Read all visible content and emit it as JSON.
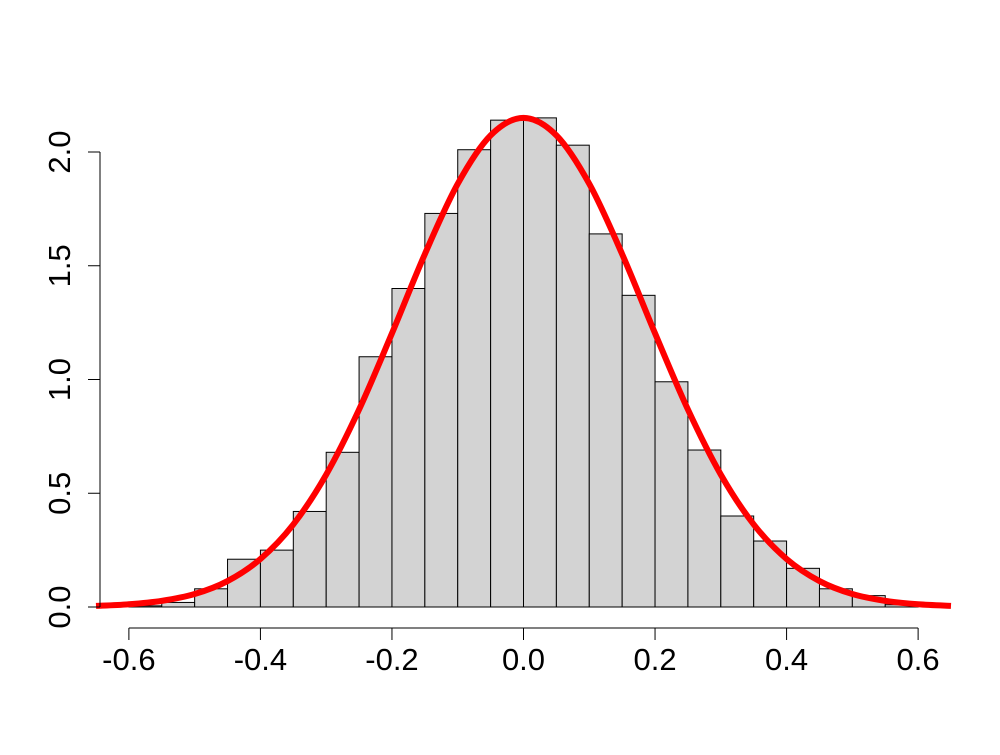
{
  "chart_data": {
    "type": "histogram",
    "bins": [
      -0.6,
      -0.55,
      -0.5,
      -0.45,
      -0.4,
      -0.35,
      -0.3,
      -0.25,
      -0.2,
      -0.15,
      -0.1,
      -0.05,
      0,
      0.05,
      0.1,
      0.15,
      0.2,
      0.25,
      0.3,
      0.35,
      0.4,
      0.45,
      0.5,
      0.55,
      0.6
    ],
    "values": [
      0.005,
      0.02,
      0.08,
      0.21,
      0.25,
      0.42,
      0.68,
      1.1,
      1.4,
      1.73,
      2.01,
      2.14,
      2.15,
      2.03,
      1.64,
      1.37,
      0.99,
      0.69,
      0.4,
      0.29,
      0.17,
      0.08,
      0.05,
      0.01
    ],
    "color": "#d3d3d3",
    "curve": {
      "color": "#ff0000",
      "x": [
        -0.65,
        -0.6,
        -0.55,
        -0.5,
        -0.45,
        -0.4,
        -0.35,
        -0.3,
        -0.25,
        -0.2,
        -0.15,
        -0.1,
        -0.05,
        0,
        0.05,
        0.1,
        0.15,
        0.2,
        0.25,
        0.3,
        0.35,
        0.4,
        0.45,
        0.5,
        0.55,
        0.6,
        0.65
      ],
      "y": [
        0.005,
        0.012,
        0.027,
        0.057,
        0.114,
        0.211,
        0.363,
        0.582,
        0.868,
        1.203,
        1.551,
        1.86,
        2.073,
        2.15,
        2.073,
        1.86,
        1.551,
        1.203,
        0.868,
        0.582,
        0.363,
        0.211,
        0.114,
        0.057,
        0.027,
        0.012,
        0.005
      ]
    },
    "xlim": [
      -0.65,
      0.65
    ],
    "ylim": [
      0,
      2.2
    ],
    "xticks": [
      -0.6,
      -0.4,
      -0.2,
      {
        "value": 0,
        "label": "0.0"
      },
      0.2,
      0.4,
      0.6
    ],
    "yticks": [
      {
        "value": 0,
        "label": "0.0"
      },
      0.5,
      {
        "value": 1,
        "label": "1.0"
      },
      1.5,
      {
        "value": 2,
        "label": "2.0"
      }
    ]
  }
}
